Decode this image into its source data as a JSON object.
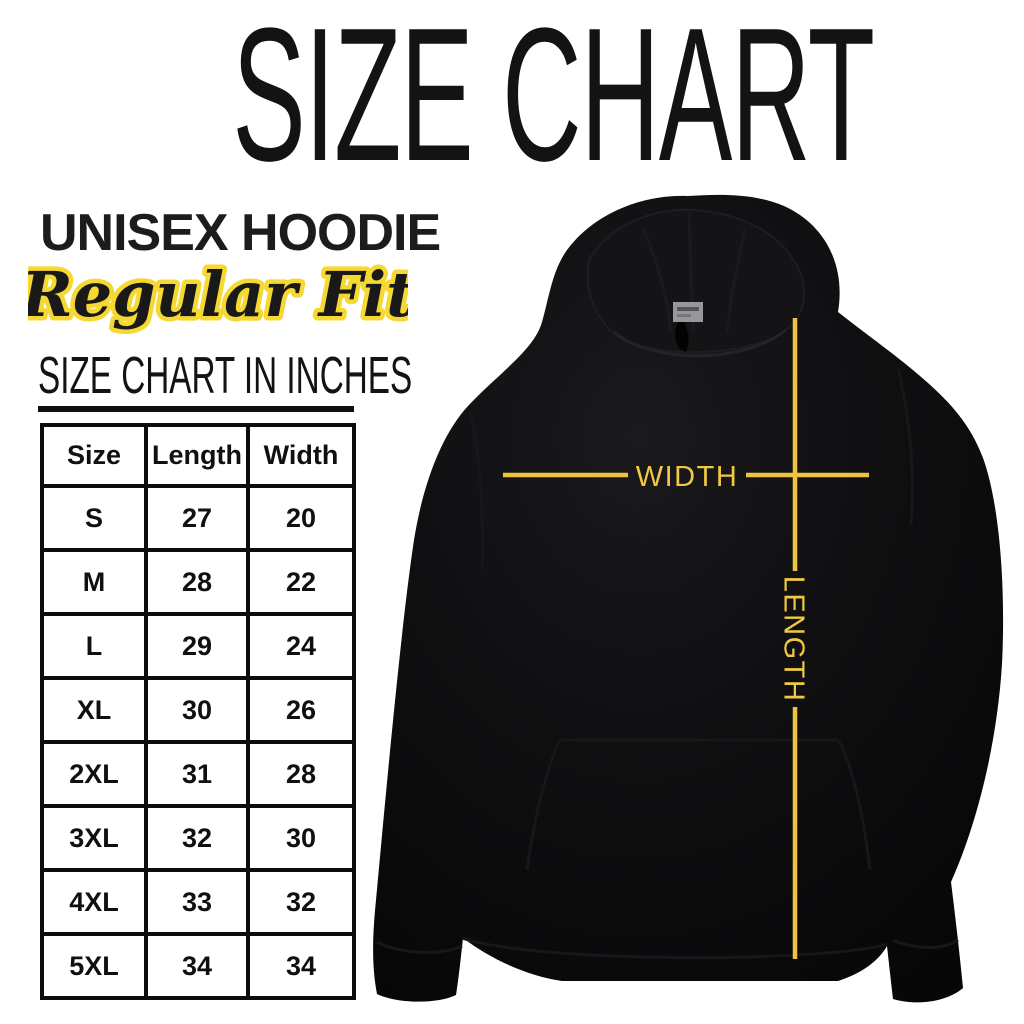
{
  "page": {
    "background": "#ffffff",
    "ink": "#131313",
    "accent_yellow": "#eec43d"
  },
  "header": {
    "title": "SIZE CHART",
    "product_line1": "UNISEX HOODIE",
    "product_line2": "Regular Fit",
    "table_heading": "SIZE CHART IN INCHES"
  },
  "diagram": {
    "width_label": "WIDTH",
    "length_label": "LENGTH",
    "line_color": "#eec43d",
    "label_color": "#f0c942",
    "garment": "black-hoodie-front",
    "neck_tag_color": "#98989a"
  },
  "chart_data": {
    "type": "table",
    "title": "SIZE CHART",
    "subtitle": "UNISEX HOODIE · Regular Fit",
    "units": "inches",
    "columns": [
      "Size",
      "Length",
      "Width"
    ],
    "rows": [
      [
        "S",
        "27",
        "20"
      ],
      [
        "M",
        "28",
        "22"
      ],
      [
        "L",
        "29",
        "24"
      ],
      [
        "XL",
        "30",
        "26"
      ],
      [
        "2XL",
        "31",
        "28"
      ],
      [
        "3XL",
        "32",
        "30"
      ],
      [
        "4XL",
        "33",
        "32"
      ],
      [
        "5XL",
        "34",
        "34"
      ]
    ]
  }
}
